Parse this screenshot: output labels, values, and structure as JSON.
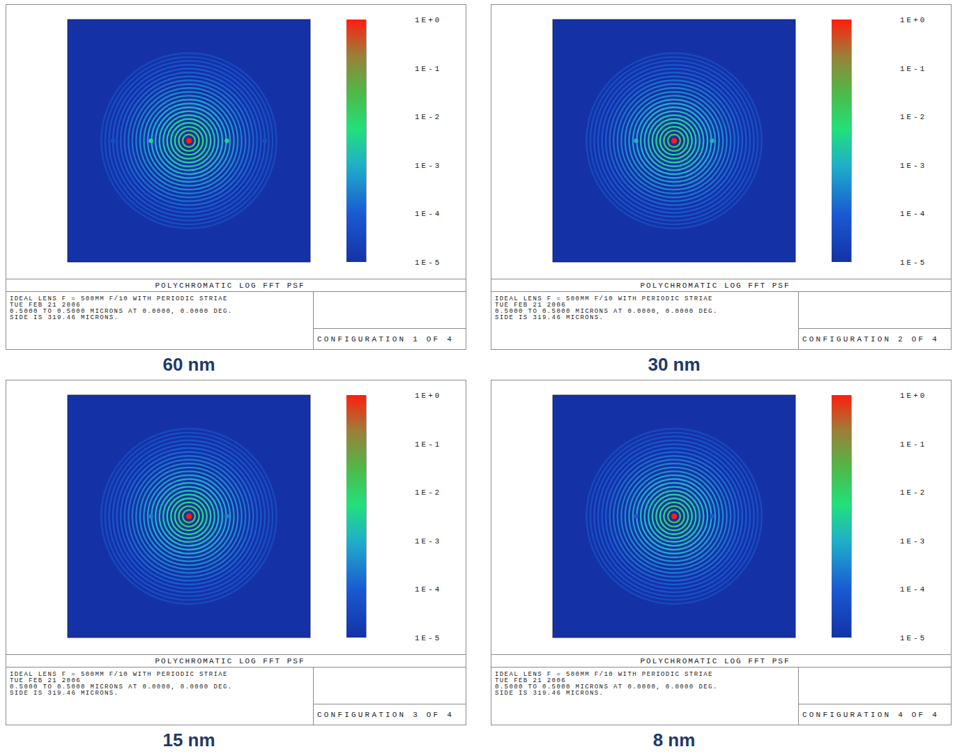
{
  "chart_data": [
    {
      "type": "heatmap",
      "title": "POLYCHROMATIC LOG FFT PSF",
      "description": [
        "IDEAL LENS F = 500MM F/10 WITH PERIODIC STRIAE",
        "TUE FEB 21 2006",
        "0.5000 TO 0.5000 MICRONS AT 0.0000, 0.0000 DEG.",
        "SIDE IS 319.46 MICRONS."
      ],
      "configuration": "CONFIGURATION 1 OF 4",
      "caption": "60 nm",
      "xlim": [
        -159.73,
        159.73
      ],
      "ylim": [
        -159.73,
        159.73
      ],
      "tick_labels": false,
      "log": true,
      "color_range": [
        1e-05,
        1
      ],
      "color_ticks": [
        {
          "value": 1,
          "label": "1E+0"
        },
        {
          "value": 0.1,
          "label": "1E-1"
        },
        {
          "value": 0.01,
          "label": "1E-2"
        },
        {
          "value": 0.001,
          "label": "1E-3"
        },
        {
          "value": 0.0001,
          "label": "1E-4"
        },
        {
          "value": 1e-05,
          "label": "1E-5"
        }
      ],
      "rings": {
        "center": [
          0,
          0
        ],
        "radius": [
          8.2,
          13.4,
          18.5,
          23.6,
          28.7,
          33.8,
          38.9,
          44.0,
          49.1,
          54.2,
          59.3,
          64.4,
          69.5,
          74.6,
          79.7,
          84.8,
          89.9,
          95.0,
          100.1,
          105.2,
          110.3,
          115.4
        ],
        "values": [
          0.02,
          0.01,
          0.006,
          0.004,
          0.003,
          0.002,
          0.0015,
          0.0011,
          0.0008,
          0.0006,
          0.00045,
          0.00035,
          0.00027,
          0.0002,
          0.00016,
          0.00013,
          0.0001,
          8e-05,
          6.5e-05,
          5.5e-05,
          4.5e-05,
          3.8e-05
        ]
      },
      "peaks": {
        "x": [
          -100,
          -50,
          0,
          50,
          100
        ],
        "y": [
          0,
          0,
          0,
          0,
          0
        ],
        "values": [
          5e-05,
          0.004,
          1,
          0.004,
          5e-05
        ]
      }
    },
    {
      "type": "heatmap",
      "title": "POLYCHROMATIC LOG FFT PSF",
      "description": [
        "IDEAL LENS F = 500MM F/10 WITH PERIODIC STRIAE",
        "TUE FEB 21 2006",
        "0.5000 TO 0.5000 MICRONS AT 0.0000, 0.0000 DEG.",
        "SIDE IS 319.46 MICRONS."
      ],
      "configuration": "CONFIGURATION 2 OF 4",
      "caption": "30 nm",
      "xlim": [
        -159.73,
        159.73
      ],
      "ylim": [
        -159.73,
        159.73
      ],
      "tick_labels": false,
      "log": true,
      "color_range": [
        1e-05,
        1
      ],
      "color_ticks": [
        {
          "value": 1,
          "label": "1E+0"
        },
        {
          "value": 0.1,
          "label": "1E-1"
        },
        {
          "value": 0.01,
          "label": "1E-2"
        },
        {
          "value": 0.001,
          "label": "1E-3"
        },
        {
          "value": 0.0001,
          "label": "1E-4"
        },
        {
          "value": 1e-05,
          "label": "1E-5"
        }
      ],
      "rings": {
        "center": [
          0,
          0
        ],
        "radius": [
          8.2,
          13.4,
          18.5,
          23.6,
          28.7,
          33.8,
          38.9,
          44.0,
          49.1,
          54.2,
          59.3,
          64.4,
          69.5,
          74.6,
          79.7,
          84.8,
          89.9,
          95.0,
          100.1,
          105.2,
          110.3,
          115.4
        ],
        "values": [
          0.02,
          0.01,
          0.006,
          0.004,
          0.003,
          0.002,
          0.0015,
          0.0011,
          0.0008,
          0.0006,
          0.00045,
          0.00035,
          0.00027,
          0.0002,
          0.00016,
          0.00013,
          0.0001,
          8e-05,
          6.5e-05,
          5.5e-05,
          4.5e-05,
          3.8e-05
        ]
      },
      "peaks": {
        "x": [
          -50,
          0,
          50
        ],
        "y": [
          0,
          0,
          0
        ],
        "values": [
          0.0012,
          1,
          0.0012
        ]
      }
    },
    {
      "type": "heatmap",
      "title": "POLYCHROMATIC LOG FFT PSF",
      "description": [
        "IDEAL LENS F = 500MM F/10 WITH PERIODIC STRIAE",
        "TUE FEB 21 2006",
        "0.5000 TO 0.5000 MICRONS AT 0.0000, 0.0000 DEG.",
        "SIDE IS 319.46 MICRONS."
      ],
      "configuration": "CONFIGURATION 3 OF 4",
      "caption": "15 nm",
      "xlim": [
        -159.73,
        159.73
      ],
      "ylim": [
        -159.73,
        159.73
      ],
      "tick_labels": false,
      "log": true,
      "color_range": [
        1e-05,
        1
      ],
      "color_ticks": [
        {
          "value": 1,
          "label": "1E+0"
        },
        {
          "value": 0.1,
          "label": "1E-1"
        },
        {
          "value": 0.01,
          "label": "1E-2"
        },
        {
          "value": 0.001,
          "label": "1E-3"
        },
        {
          "value": 0.0001,
          "label": "1E-4"
        },
        {
          "value": 1e-05,
          "label": "1E-5"
        }
      ],
      "rings": {
        "center": [
          0,
          0
        ],
        "radius": [
          8.2,
          13.4,
          18.5,
          23.6,
          28.7,
          33.8,
          38.9,
          44.0,
          49.1,
          54.2,
          59.3,
          64.4,
          69.5,
          74.6,
          79.7,
          84.8,
          89.9,
          95.0,
          100.1,
          105.2,
          110.3,
          115.4
        ],
        "values": [
          0.02,
          0.01,
          0.006,
          0.004,
          0.003,
          0.002,
          0.0015,
          0.0011,
          0.0008,
          0.0006,
          0.00045,
          0.00035,
          0.00027,
          0.0002,
          0.00016,
          0.00013,
          0.0001,
          8e-05,
          6.5e-05,
          5.5e-05,
          4.5e-05,
          3.8e-05
        ]
      },
      "peaks": {
        "x": [
          -50,
          0,
          50
        ],
        "y": [
          0,
          0,
          0
        ],
        "values": [
          0.0003,
          1,
          0.0003
        ]
      }
    },
    {
      "type": "heatmap",
      "title": "POLYCHROMATIC LOG FFT PSF",
      "description": [
        "IDEAL LENS F = 500MM F/10 WITH PERIODIC STRIAE",
        "TUE FEB 21 2006",
        "0.5000 TO 0.5000 MICRONS AT 0.0000, 0.0000 DEG.",
        "SIDE IS 319.46 MICRONS."
      ],
      "configuration": "CONFIGURATION 4 OF 4",
      "caption": "8 nm",
      "xlim": [
        -159.73,
        159.73
      ],
      "ylim": [
        -159.73,
        159.73
      ],
      "tick_labels": false,
      "log": true,
      "color_range": [
        1e-05,
        1
      ],
      "color_ticks": [
        {
          "value": 1,
          "label": "1E+0"
        },
        {
          "value": 0.1,
          "label": "1E-1"
        },
        {
          "value": 0.01,
          "label": "1E-2"
        },
        {
          "value": 0.001,
          "label": "1E-3"
        },
        {
          "value": 0.0001,
          "label": "1E-4"
        },
        {
          "value": 1e-05,
          "label": "1E-5"
        }
      ],
      "rings": {
        "center": [
          0,
          0
        ],
        "radius": [
          8.2,
          13.4,
          18.5,
          23.6,
          28.7,
          33.8,
          38.9,
          44.0,
          49.1,
          54.2,
          59.3,
          64.4,
          69.5,
          74.6,
          79.7,
          84.8,
          89.9,
          95.0,
          100.1,
          105.2,
          110.3,
          115.4
        ],
        "values": [
          0.02,
          0.01,
          0.006,
          0.004,
          0.003,
          0.002,
          0.0015,
          0.0011,
          0.0008,
          0.0006,
          0.00045,
          0.00035,
          0.00027,
          0.0002,
          0.00016,
          0.00013,
          0.0001,
          8e-05,
          6.5e-05,
          5.5e-05,
          4.5e-05,
          3.8e-05
        ]
      },
      "peaks": {
        "x": [
          -50,
          0,
          50
        ],
        "y": [
          0,
          0,
          0
        ],
        "values": [
          0.0001,
          1,
          0.0001
        ]
      }
    }
  ]
}
